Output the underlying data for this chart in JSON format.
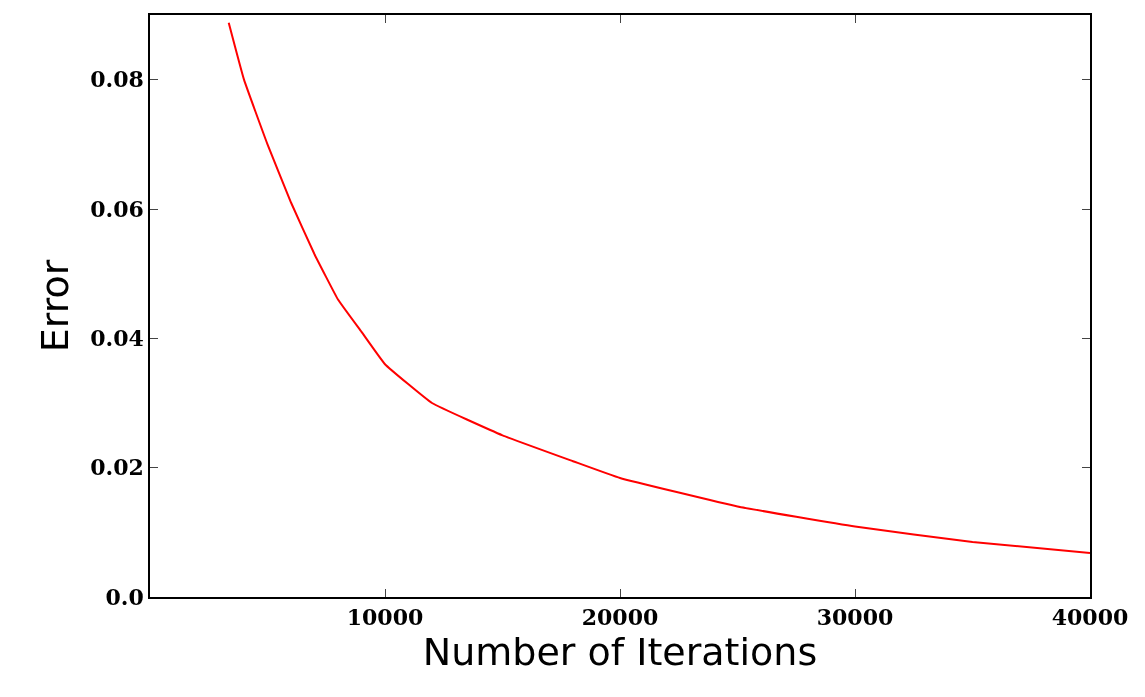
{
  "chart_data": {
    "type": "line",
    "xlabel": "Number of Iterations",
    "ylabel": "Error",
    "xlim": [
      0,
      40000
    ],
    "xticks": [
      10000,
      20000,
      30000,
      40000
    ],
    "ylim": [
      0,
      0.09
    ],
    "yticks": [
      {
        "value": 0,
        "label": "0.0"
      },
      0.02,
      0.04,
      0.06,
      0.08
    ],
    "x": [
      3350,
      4000,
      5000,
      6000,
      7000,
      8000,
      9000,
      10000,
      12000,
      15000,
      18000,
      20000,
      25000,
      30000,
      35000,
      40000
    ],
    "series": [
      {
        "color": "#ff0000",
        "values": [
          0.0888,
          0.08,
          0.07,
          0.061,
          0.053,
          0.046,
          0.041,
          0.036,
          0.03,
          0.025,
          0.021,
          0.0184,
          0.014,
          0.0109,
          0.0085,
          0.0068
        ]
      }
    ],
    "marker": "none",
    "line_style": "solid"
  }
}
